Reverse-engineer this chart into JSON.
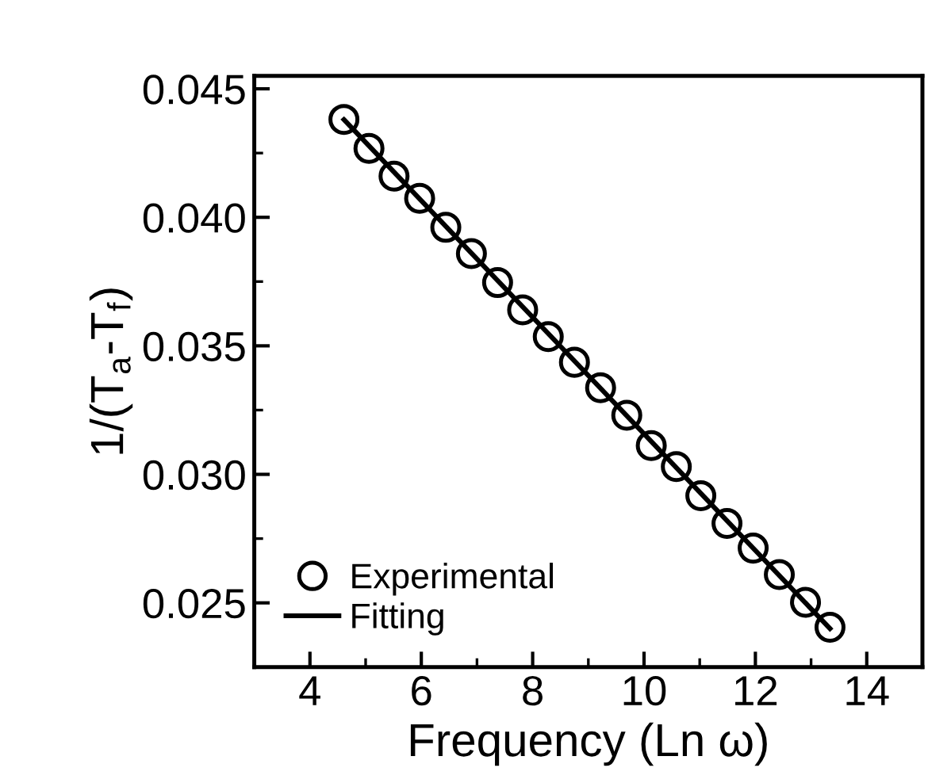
{
  "chart_data": {
    "type": "scatter",
    "xlabel": "Frequency (Ln ω)",
    "ylabel": "1/(T$_{a}$-T$_{f}$)",
    "xlim": [
      3,
      15
    ],
    "ylim": [
      0.0225,
      0.0455
    ],
    "xticks": [
      4,
      6,
      8,
      10,
      12,
      14
    ],
    "yticks": [
      {
        "value": 0.025,
        "label": "0.025"
      },
      {
        "value": 0.03,
        "label": "0.030"
      },
      {
        "value": 0.035,
        "label": "0.035"
      },
      {
        "value": 0.04,
        "label": "0.040"
      },
      {
        "value": 0.045,
        "label": "0.045"
      }
    ],
    "legend": "bottom left",
    "grid": false,
    "series": [
      {
        "name": "Experimental",
        "marker": "circle",
        "color": "#000000",
        "x": [
          4.61,
          5.06,
          5.51,
          5.97,
          6.44,
          6.9,
          7.37,
          7.82,
          8.28,
          8.75,
          9.22,
          9.69,
          10.13,
          10.58,
          11.02,
          11.49,
          11.96,
          12.43,
          12.9,
          13.34
        ],
        "values": [
          0.04381,
          0.04268,
          0.0416,
          0.04074,
          0.03961,
          0.03859,
          0.03746,
          0.0364,
          0.03536,
          0.03436,
          0.03337,
          0.0323,
          0.03112,
          0.0303,
          0.02917,
          0.02809,
          0.02713,
          0.0261,
          0.02502,
          0.02405
        ]
      },
      {
        "name": "Fitting",
        "type": "line",
        "line_style": "solid",
        "color": "#000000",
        "x": [
          4.61,
          13.34
        ],
        "values": [
          0.0438,
          0.024
        ]
      }
    ]
  }
}
